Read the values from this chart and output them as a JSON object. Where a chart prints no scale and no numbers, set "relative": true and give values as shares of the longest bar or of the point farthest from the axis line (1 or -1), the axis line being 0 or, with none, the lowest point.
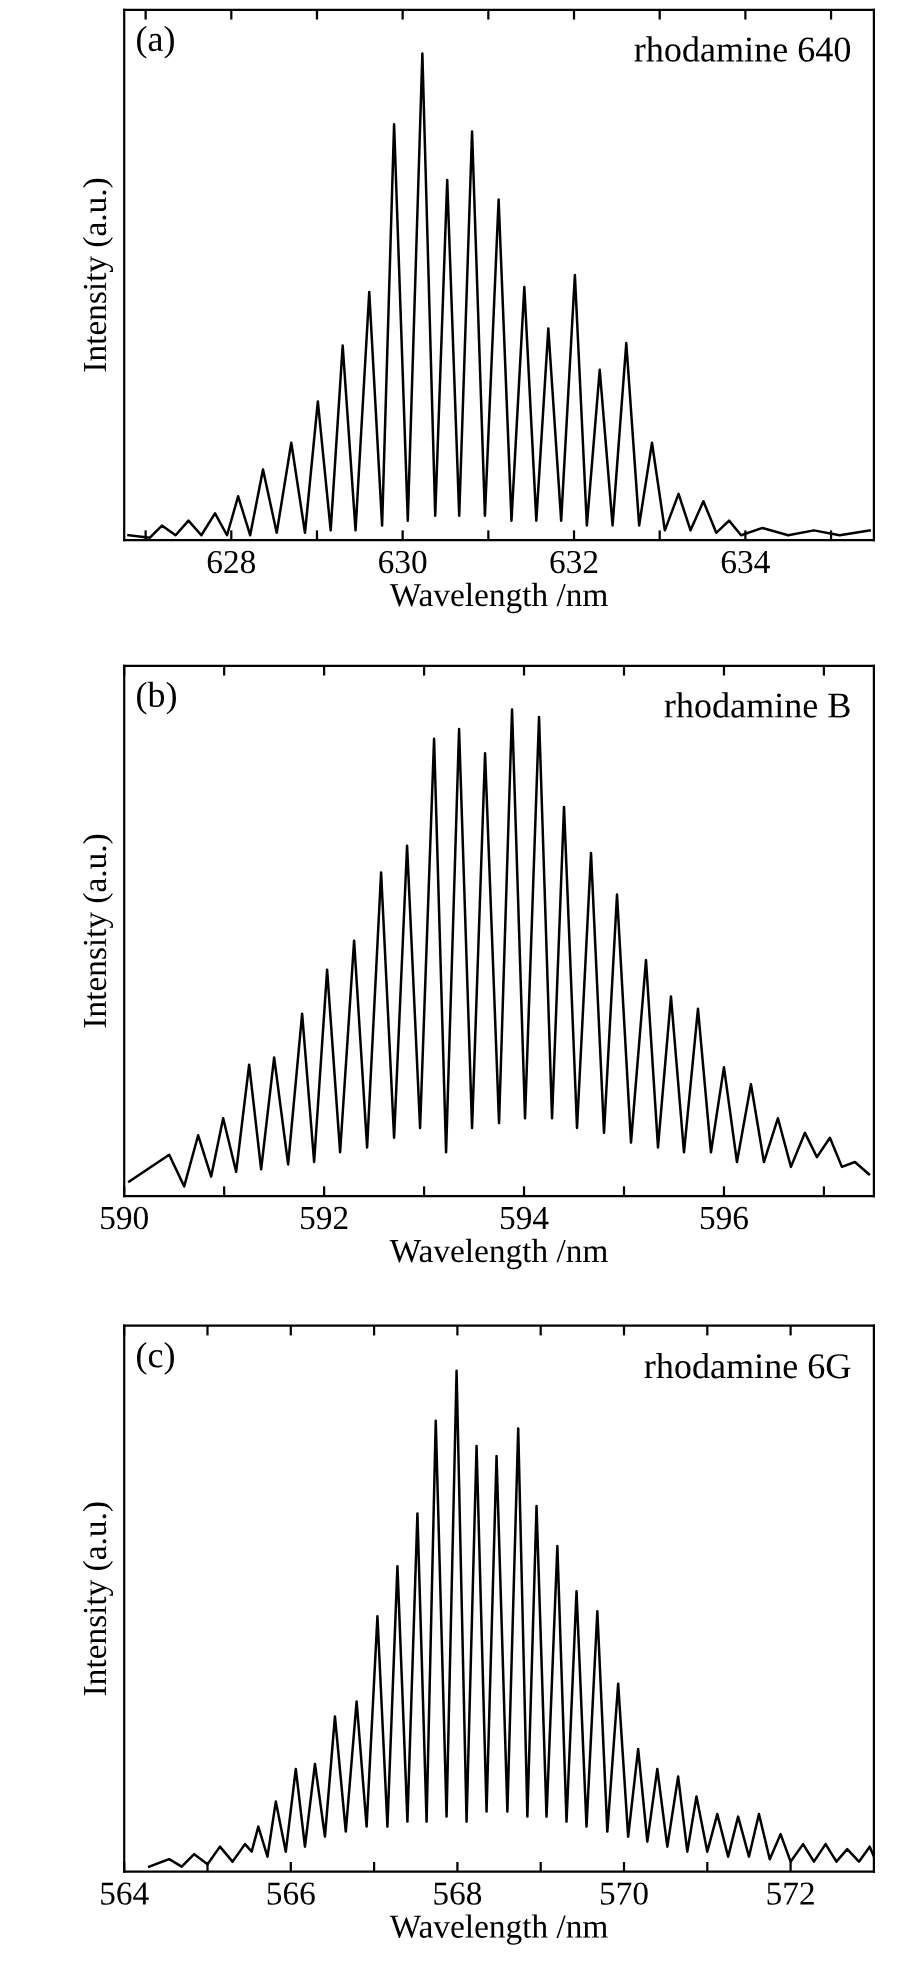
{
  "chart_data": [
    {
      "type": "line",
      "title": "rhodamine 640",
      "annotations": [
        "(a)"
      ],
      "xlabel": "Wavelength /nm",
      "ylabel": "Intensity (a.u.)",
      "relative": true,
      "tick_labels": "x",
      "grid": false,
      "legend": false,
      "xlim": [
        626.75,
        635.5
      ],
      "xticks": [
        {
          "value": 627,
          "label": null
        },
        628,
        {
          "value": 629,
          "label": null
        },
        630,
        {
          "value": 631,
          "label": null
        },
        632,
        {
          "value": 633,
          "label": null
        },
        634,
        {
          "value": 635,
          "label": null
        }
      ],
      "series": [
        {
          "color": "#000000",
          "x": [
            626.8,
            627.05,
            627.19,
            627.35,
            627.5,
            627.65,
            627.81,
            627.95,
            628.08,
            628.22,
            628.37,
            628.53,
            628.7,
            628.86,
            629.01,
            629.16,
            629.3,
            629.45,
            629.61,
            629.76,
            629.9,
            630.06,
            630.23,
            630.38,
            630.52,
            630.66,
            630.81,
            630.96,
            631.12,
            631.27,
            631.42,
            631.56,
            631.7,
            631.85,
            632.01,
            632.15,
            632.3,
            632.45,
            632.61,
            632.76,
            632.91,
            633.06,
            633.22,
            633.36,
            633.51,
            633.66,
            633.81,
            633.95,
            634.2,
            634.5,
            634.8,
            635.1,
            635.45
          ],
          "values": [
            0.01,
            0.005,
            0.03,
            0.01,
            0.04,
            0.01,
            0.055,
            0.01,
            0.09,
            0.01,
            0.145,
            0.015,
            0.2,
            0.015,
            0.285,
            0.02,
            0.4,
            0.02,
            0.51,
            0.03,
            0.855,
            0.04,
            1.0,
            0.05,
            0.74,
            0.05,
            0.84,
            0.05,
            0.7,
            0.04,
            0.52,
            0.04,
            0.435,
            0.04,
            0.545,
            0.03,
            0.35,
            0.03,
            0.405,
            0.03,
            0.2,
            0.02,
            0.095,
            0.02,
            0.08,
            0.015,
            0.04,
            0.01,
            0.025,
            0.01,
            0.02,
            0.01,
            0.02
          ]
        }
      ]
    },
    {
      "type": "line",
      "title": "rhodamine B",
      "annotations": [
        "(b)"
      ],
      "xlabel": "Wavelength /nm",
      "ylabel": "Intensity (a.u.)",
      "relative": true,
      "tick_labels": "x",
      "grid": false,
      "legend": false,
      "xlim": [
        590,
        597.5
      ],
      "xticks": [
        590,
        {
          "value": 591,
          "label": null
        },
        592,
        {
          "value": 593,
          "label": null
        },
        594,
        {
          "value": 595,
          "label": null
        },
        596,
        {
          "value": 597,
          "label": null
        }
      ],
      "series": [
        {
          "color": "#000000",
          "x": [
            590.05,
            590.45,
            590.6,
            590.74,
            590.87,
            590.99,
            591.12,
            591.25,
            591.37,
            591.5,
            591.64,
            591.78,
            591.9,
            592.03,
            592.16,
            592.3,
            592.43,
            592.57,
            592.7,
            592.83,
            592.96,
            593.1,
            593.22,
            593.35,
            593.48,
            593.61,
            593.75,
            593.88,
            594.01,
            594.15,
            594.28,
            594.4,
            594.53,
            594.67,
            594.8,
            594.93,
            595.07,
            595.22,
            595.34,
            595.47,
            595.6,
            595.74,
            595.87,
            596.0,
            596.13,
            596.27,
            596.4,
            596.54,
            596.67,
            596.81,
            596.93,
            597.06,
            597.18,
            597.31,
            597.45
          ],
          "values": [
            0.03,
            0.085,
            0.02,
            0.125,
            0.04,
            0.16,
            0.05,
            0.27,
            0.055,
            0.285,
            0.065,
            0.375,
            0.07,
            0.465,
            0.09,
            0.525,
            0.1,
            0.665,
            0.12,
            0.72,
            0.14,
            0.94,
            0.09,
            0.96,
            0.14,
            0.91,
            0.15,
            1.0,
            0.16,
            0.985,
            0.16,
            0.8,
            0.14,
            0.705,
            0.13,
            0.62,
            0.11,
            0.485,
            0.1,
            0.41,
            0.09,
            0.385,
            0.09,
            0.265,
            0.07,
            0.23,
            0.07,
            0.16,
            0.06,
            0.13,
            0.08,
            0.12,
            0.06,
            0.07,
            0.045
          ]
        }
      ]
    },
    {
      "type": "line",
      "title": "rhodamine 6G",
      "annotations": [
        "(c)"
      ],
      "xlabel": "Wavelength /nm",
      "ylabel": "Intensity (a.u.)",
      "relative": true,
      "tick_labels": "x",
      "grid": false,
      "legend": false,
      "xlim": [
        564,
        573
      ],
      "xticks": [
        564,
        {
          "value": 565,
          "label": null
        },
        566,
        {
          "value": 567,
          "label": null
        },
        568,
        {
          "value": 569,
          "label": null
        },
        570,
        {
          "value": 571,
          "label": null
        },
        572
      ],
      "series": [
        {
          "color": "#000000",
          "x": [
            564.3,
            564.54,
            564.69,
            564.84,
            565.0,
            565.15,
            565.3,
            565.45,
            565.53,
            565.61,
            565.72,
            565.82,
            565.94,
            566.06,
            566.17,
            566.29,
            566.41,
            566.53,
            566.66,
            566.79,
            566.91,
            567.04,
            567.16,
            567.28,
            567.4,
            567.52,
            567.63,
            567.74,
            567.87,
            567.99,
            568.11,
            568.23,
            568.35,
            568.47,
            568.6,
            568.73,
            568.84,
            568.95,
            569.07,
            569.2,
            569.31,
            569.43,
            569.55,
            569.68,
            569.8,
            569.93,
            570.05,
            570.17,
            570.28,
            570.4,
            570.52,
            570.65,
            570.76,
            570.87,
            571.0,
            571.12,
            571.25,
            571.37,
            571.5,
            571.62,
            571.75,
            571.88,
            572.0,
            572.15,
            572.28,
            572.42,
            572.55,
            572.68,
            572.82,
            572.95,
            573.0
          ],
          "values": [
            0.01,
            0.025,
            0.01,
            0.035,
            0.015,
            0.05,
            0.02,
            0.055,
            0.04,
            0.09,
            0.03,
            0.14,
            0.04,
            0.205,
            0.05,
            0.215,
            0.07,
            0.31,
            0.08,
            0.34,
            0.09,
            0.51,
            0.09,
            0.61,
            0.1,
            0.715,
            0.1,
            0.9,
            0.11,
            1.0,
            0.1,
            0.85,
            0.12,
            0.83,
            0.12,
            0.885,
            0.11,
            0.73,
            0.11,
            0.65,
            0.1,
            0.56,
            0.09,
            0.52,
            0.08,
            0.375,
            0.07,
            0.245,
            0.06,
            0.205,
            0.05,
            0.19,
            0.04,
            0.15,
            0.04,
            0.115,
            0.03,
            0.11,
            0.03,
            0.115,
            0.025,
            0.075,
            0.02,
            0.055,
            0.02,
            0.055,
            0.02,
            0.045,
            0.02,
            0.05,
            0.03
          ]
        }
      ]
    }
  ]
}
